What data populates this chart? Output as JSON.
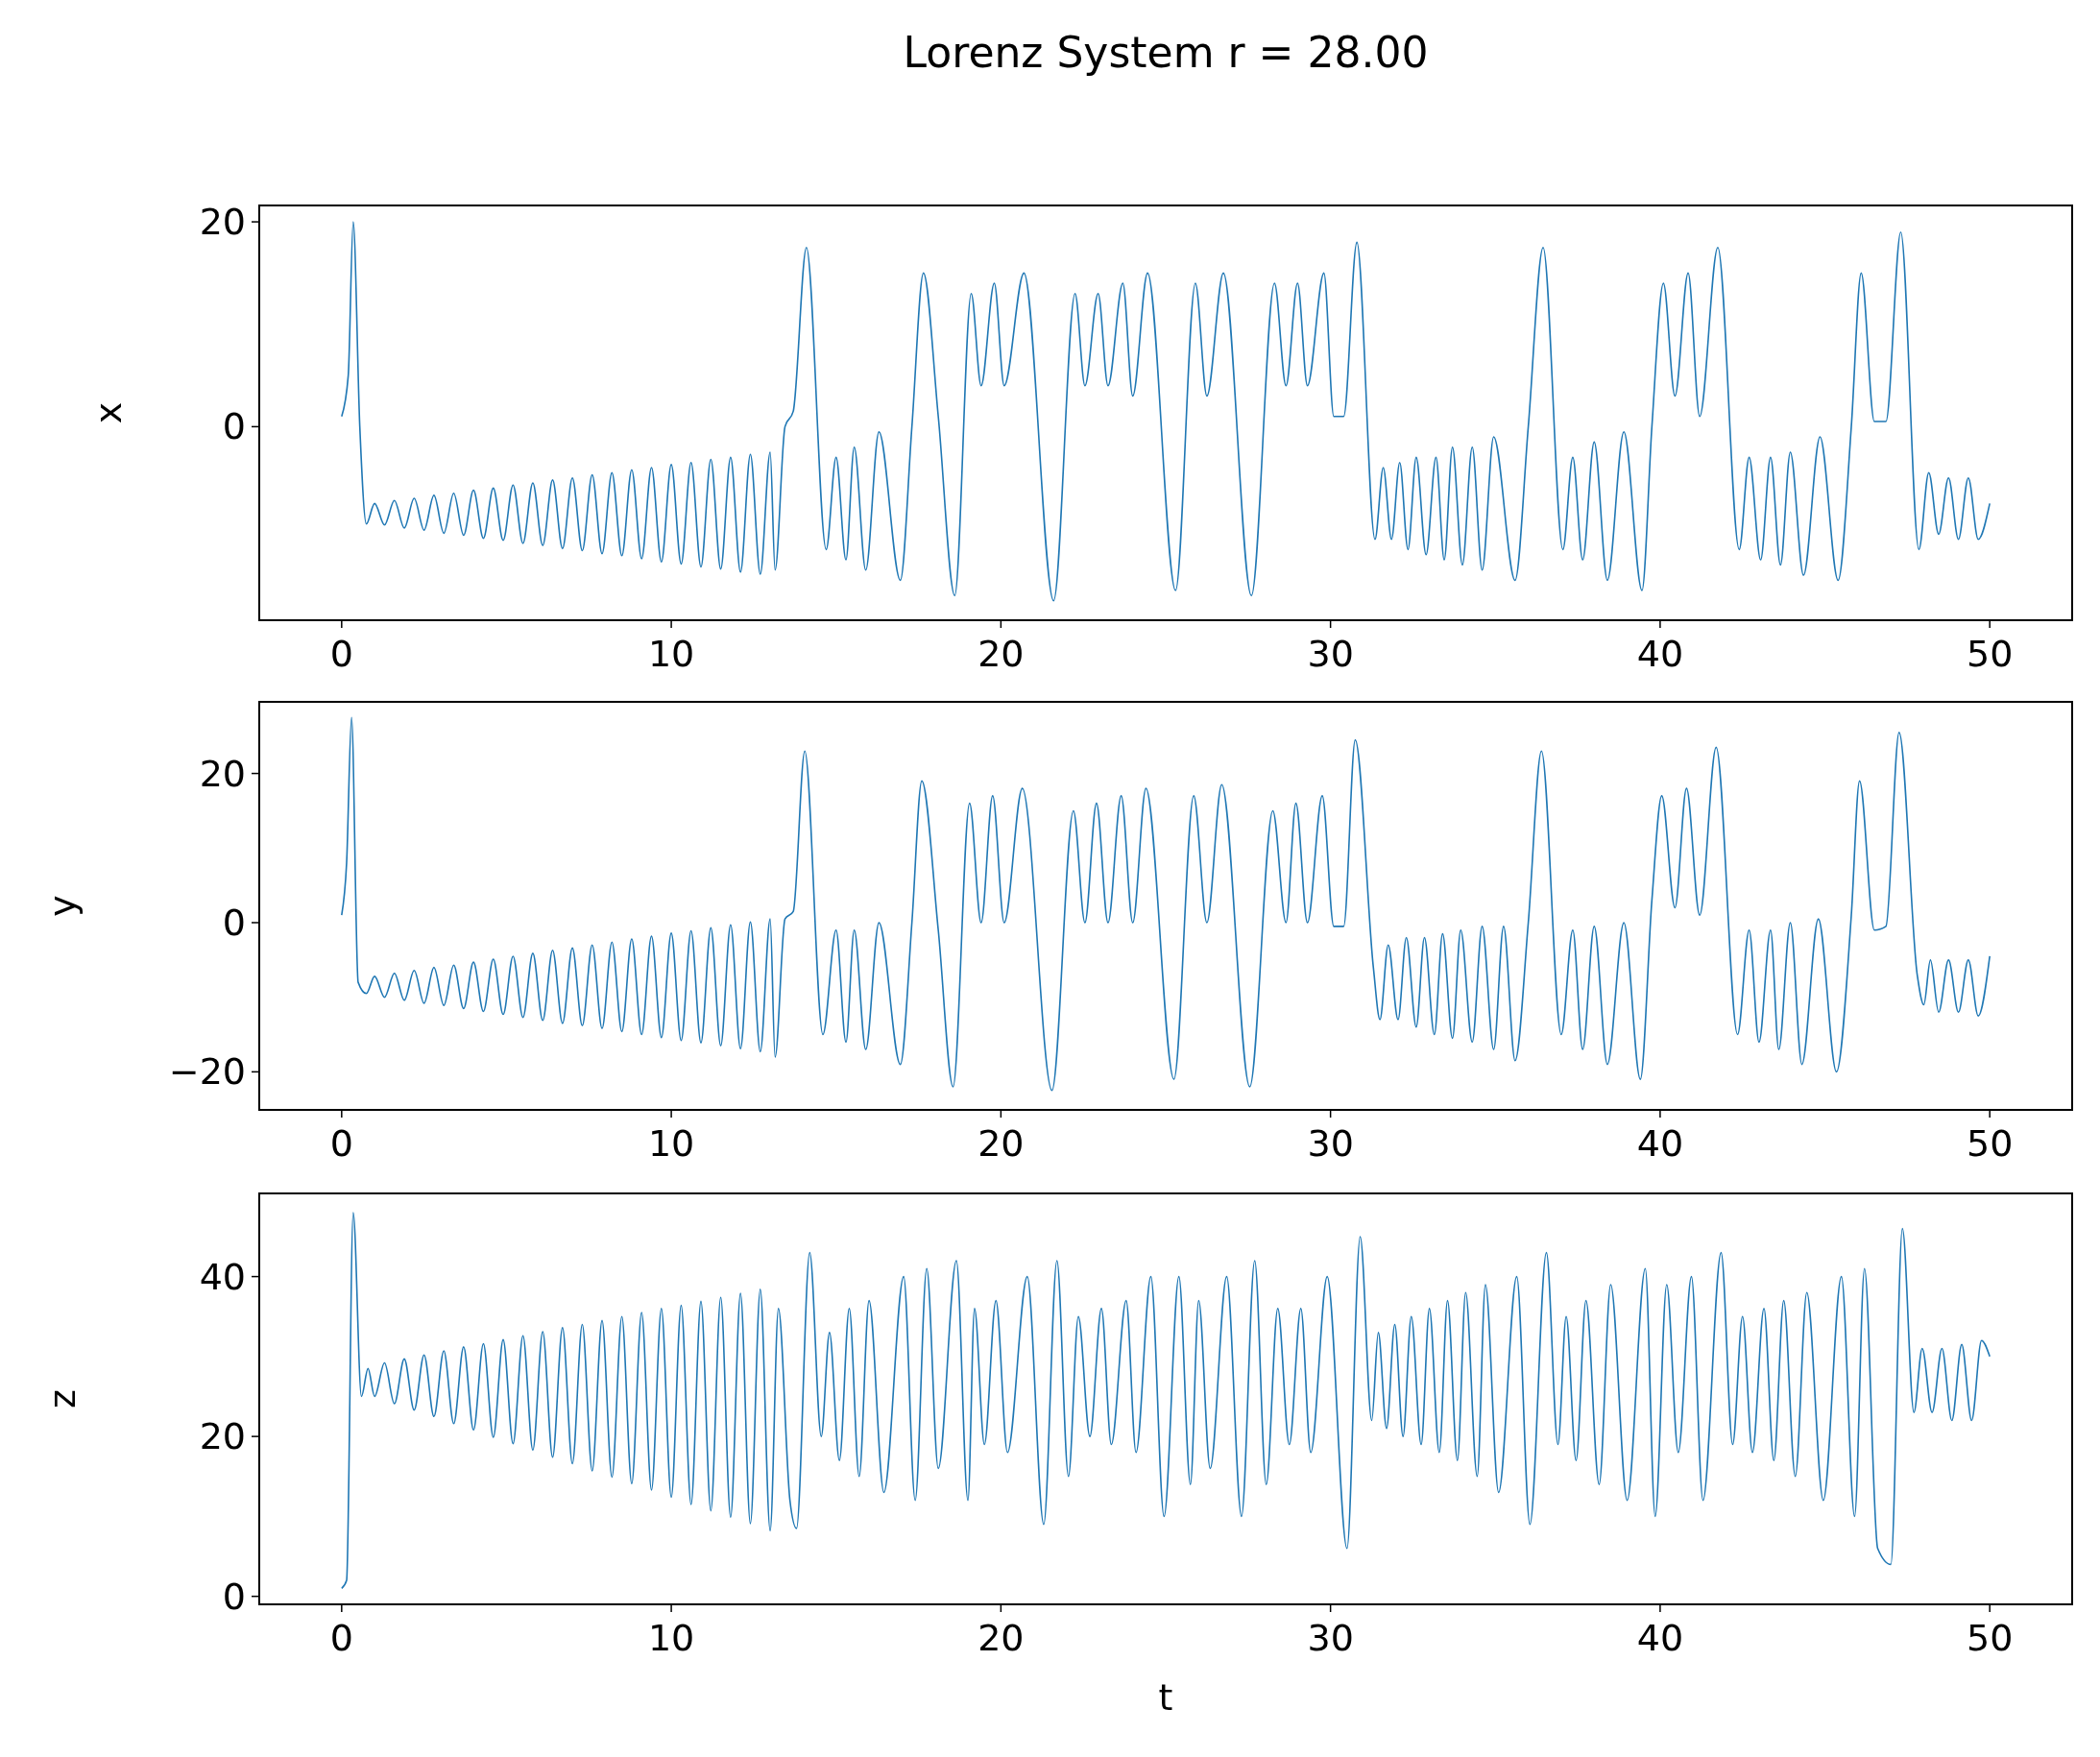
{
  "chart_data": [
    {
      "type": "line",
      "title": "Lorenz System  r = 28.00",
      "ylabel": "x",
      "color": "#1f77b4",
      "xlim": [
        -2.5,
        52.5
      ],
      "ylim": [
        -18.9,
        21.6
      ],
      "xticks": [
        0,
        10,
        20,
        30,
        40,
        50
      ],
      "yticks": [
        0,
        20
      ],
      "x": [
        0,
        0.2,
        0.35,
        0.55,
        0.75,
        1.0,
        1.3,
        1.6,
        1.9,
        2.2,
        2.5,
        2.8,
        3.1,
        3.4,
        3.7,
        4.0,
        4.3,
        4.6,
        4.9,
        5.2,
        5.5,
        5.8,
        6.1,
        6.4,
        6.7,
        7.0,
        7.3,
        7.6,
        7.9,
        8.2,
        8.5,
        8.8,
        9.1,
        9.4,
        9.7,
        10.0,
        10.3,
        10.6,
        10.9,
        11.2,
        11.5,
        11.8,
        12.1,
        12.4,
        12.7,
        13.0,
        13.15,
        13.45,
        13.7,
        14.1,
        14.7,
        15.0,
        15.3,
        15.55,
        15.9,
        16.3,
        16.95,
        17.3,
        17.65,
        18.1,
        18.6,
        19.1,
        19.4,
        19.8,
        20.1,
        20.7,
        21.6,
        22.25,
        22.55,
        22.95,
        23.25,
        23.7,
        24.0,
        24.45,
        25.3,
        25.9,
        26.25,
        26.75,
        27.6,
        28.3,
        28.65,
        29.0,
        29.3,
        29.8,
        30.1,
        30.4,
        30.8,
        31.35,
        31.6,
        31.85,
        32.1,
        32.35,
        32.6,
        32.9,
        33.2,
        33.45,
        33.7,
        34.0,
        34.3,
        34.6,
        34.95,
        35.6,
        36.0,
        36.45,
        37.05,
        37.35,
        37.65,
        38.0,
        38.4,
        38.9,
        39.45,
        39.75,
        40.1,
        40.45,
        40.85,
        41.2,
        41.75,
        42.4,
        42.7,
        43.05,
        43.35,
        43.65,
        43.95,
        44.35,
        44.85,
        45.4,
        45.8,
        46.1,
        46.5,
        46.85,
        47.3,
        47.85,
        48.15,
        48.45,
        48.75,
        49.05,
        49.35,
        49.65,
        50.0
      ],
      "values": [
        1,
        5,
        20,
        0,
        -9.5,
        -7.5,
        -9.6,
        -7.2,
        -9.9,
        -7.0,
        -10.1,
        -6.7,
        -10.4,
        -6.5,
        -10.6,
        -6.2,
        -10.9,
        -6.0,
        -11.1,
        -5.7,
        -11.4,
        -5.5,
        -11.6,
        -5.2,
        -11.9,
        -5.0,
        -12.1,
        -4.7,
        -12.4,
        -4.5,
        -12.6,
        -4.2,
        -12.9,
        -4.0,
        -13.2,
        -3.7,
        -13.4,
        -3.5,
        -13.7,
        -3.2,
        -13.9,
        -3.0,
        -14.2,
        -2.7,
        -14.4,
        -2.5,
        -14,
        0,
        1.5,
        17.5,
        -12,
        -3,
        -13,
        -2,
        -14,
        -0.5,
        -15,
        0,
        15,
        1,
        -16.5,
        13,
        4,
        14,
        4,
        15,
        -17,
        13,
        4,
        13,
        4,
        14,
        3,
        15,
        -16,
        14,
        3,
        15,
        -16.5,
        14,
        4,
        14,
        4,
        15,
        1,
        1,
        18,
        -11,
        -4,
        -11,
        -3.5,
        -12,
        -3,
        -12.5,
        -3,
        -13,
        -2,
        -13.5,
        -2,
        -14,
        -1,
        -15,
        0,
        17.5,
        -12,
        -3,
        -13,
        -1.5,
        -15,
        -0.5,
        -16,
        0,
        14,
        3,
        15,
        1,
        17.5,
        -12,
        -3,
        -13,
        -3,
        -13.5,
        -2.5,
        -14.5,
        -1,
        -15,
        0,
        15,
        0.5,
        0.5,
        19,
        -12,
        -4.5,
        -10.5,
        -5,
        -11,
        -5,
        -11,
        -7.5
      ]
    },
    {
      "type": "line",
      "ylabel": "y",
      "color": "#1f77b4",
      "xlim": [
        -2.5,
        52.5
      ],
      "ylim": [
        -25.1,
        29.6
      ],
      "xticks": [
        0,
        10,
        20,
        30,
        40,
        50
      ],
      "yticks": [
        -20,
        0,
        20
      ],
      "x": [
        0,
        0.15,
        0.3,
        0.5,
        0.75,
        1.0,
        1.3,
        1.6,
        1.9,
        2.2,
        2.5,
        2.8,
        3.1,
        3.4,
        3.7,
        4.0,
        4.3,
        4.6,
        4.9,
        5.2,
        5.5,
        5.8,
        6.1,
        6.4,
        6.7,
        7.0,
        7.3,
        7.6,
        7.9,
        8.2,
        8.5,
        8.8,
        9.1,
        9.4,
        9.7,
        10.0,
        10.3,
        10.6,
        10.9,
        11.2,
        11.5,
        11.8,
        12.1,
        12.4,
        12.7,
        13.0,
        13.15,
        13.45,
        13.7,
        14.05,
        14.6,
        15.0,
        15.3,
        15.55,
        15.9,
        16.3,
        16.95,
        17.3,
        17.6,
        18.1,
        18.55,
        19.05,
        19.4,
        19.75,
        20.1,
        20.65,
        21.55,
        22.2,
        22.55,
        22.9,
        23.25,
        23.65,
        24.0,
        24.4,
        25.25,
        25.85,
        26.25,
        26.7,
        27.55,
        28.25,
        28.65,
        28.95,
        29.3,
        29.75,
        30.1,
        30.4,
        30.75,
        31.3,
        31.5,
        31.75,
        32.05,
        32.3,
        32.6,
        32.85,
        33.15,
        33.4,
        33.7,
        33.95,
        34.3,
        34.6,
        34.95,
        35.25,
        35.6,
        36.0,
        36.4,
        37.0,
        37.35,
        37.65,
        38.0,
        38.4,
        38.9,
        39.4,
        39.75,
        40.05,
        40.45,
        40.8,
        41.2,
        41.7,
        42.35,
        42.7,
        43.0,
        43.35,
        43.6,
        43.95,
        44.3,
        44.8,
        45.35,
        45.8,
        46.05,
        46.5,
        46.85,
        47.25,
        47.8,
        48.0,
        48.2,
        48.45,
        48.75,
        49.05,
        49.35,
        49.65,
        50.0
      ],
      "values": [
        1,
        8,
        27.5,
        -8,
        -9.5,
        -7.2,
        -10.0,
        -6.8,
        -10.4,
        -6.4,
        -10.8,
        -6.0,
        -11.1,
        -5.7,
        -11.5,
        -5.3,
        -11.9,
        -4.9,
        -12.3,
        -4.5,
        -12.7,
        -4.1,
        -13.1,
        -3.7,
        -13.5,
        -3.4,
        -13.8,
        -3.0,
        -14.2,
        -2.6,
        -14.6,
        -2.2,
        -15.0,
        -1.8,
        -15.4,
        -1.4,
        -15.8,
        -1.1,
        -16.1,
        -0.7,
        -16.5,
        -0.3,
        -16.9,
        0.1,
        -17.3,
        0.5,
        -18,
        0.5,
        1.5,
        23,
        -15,
        -1,
        -16,
        -1,
        -17,
        0,
        -19,
        0,
        19,
        -1,
        -22,
        16,
        0,
        17,
        0,
        18,
        -22.5,
        15,
        0,
        16,
        0,
        17,
        0,
        18,
        -21,
        17,
        0,
        18.5,
        -22,
        15,
        0,
        16,
        0,
        17,
        -0.5,
        -0.5,
        24.5,
        -6,
        -13,
        -3,
        -13,
        -2,
        -14,
        -2,
        -15,
        -1.5,
        -15.5,
        -1,
        -16,
        -0.5,
        -17,
        -0.5,
        -18.5,
        0,
        23,
        -15,
        -1,
        -17,
        -0.5,
        -19,
        0,
        -21,
        3,
        17,
        2,
        18,
        1,
        23.5,
        -15,
        -1,
        -16,
        -1,
        -17,
        0,
        -19,
        0.5,
        -20,
        1,
        19,
        -1,
        -0.5,
        25.5,
        -7,
        -11,
        -5,
        -12,
        -5,
        -12,
        -5,
        -12.5,
        -4.5
      ]
    },
    {
      "type": "line",
      "ylabel": "z",
      "xlabel": "t",
      "color": "#1f77b4",
      "xlim": [
        -2.5,
        52.5
      ],
      "ylim": [
        -1,
        50.4
      ],
      "xticks": [
        0,
        10,
        20,
        30,
        40,
        50
      ],
      "yticks": [
        0,
        20,
        40
      ],
      "x": [
        0,
        0.15,
        0.35,
        0.6,
        0.8,
        1.0,
        1.3,
        1.6,
        1.9,
        2.2,
        2.5,
        2.8,
        3.1,
        3.4,
        3.7,
        4.0,
        4.3,
        4.6,
        4.9,
        5.2,
        5.5,
        5.8,
        6.1,
        6.4,
        6.7,
        7.0,
        7.3,
        7.6,
        7.9,
        8.2,
        8.5,
        8.8,
        9.1,
        9.4,
        9.7,
        10.0,
        10.3,
        10.6,
        10.9,
        11.2,
        11.5,
        11.8,
        12.1,
        12.4,
        12.7,
        13.0,
        13.25,
        13.6,
        13.8,
        14.2,
        14.55,
        14.8,
        15.1,
        15.4,
        15.7,
        16.0,
        16.45,
        17.05,
        17.4,
        17.75,
        18.1,
        18.65,
        19.0,
        19.2,
        19.5,
        19.85,
        20.2,
        20.8,
        21.3,
        21.7,
        22.05,
        22.35,
        22.7,
        23.05,
        23.35,
        23.8,
        24.1,
        24.55,
        24.95,
        25.4,
        25.75,
        26.0,
        26.35,
        26.85,
        27.3,
        27.7,
        28.05,
        28.4,
        28.75,
        29.1,
        29.4,
        29.9,
        30.5,
        30.9,
        31.25,
        31.45,
        31.7,
        31.95,
        32.2,
        32.45,
        32.75,
        33.0,
        33.3,
        33.55,
        33.85,
        34.1,
        34.45,
        34.7,
        35.1,
        35.65,
        36.05,
        36.55,
        36.9,
        37.15,
        37.45,
        37.75,
        38.15,
        38.5,
        39.0,
        39.55,
        39.85,
        40.2,
        40.55,
        40.95,
        41.3,
        41.85,
        42.2,
        42.5,
        42.8,
        43.15,
        43.45,
        43.75,
        44.1,
        44.45,
        44.95,
        45.5,
        45.9,
        46.2,
        46.6,
        47.0,
        47.35,
        47.7,
        47.95,
        48.25,
        48.55,
        48.85,
        49.15,
        49.45,
        49.75,
        50.0
      ],
      "values": [
        1,
        2,
        48,
        25,
        28.5,
        25.0,
        29.2,
        24.1,
        29.7,
        23.3,
        30.2,
        22.5,
        30.7,
        21.6,
        31.2,
        20.8,
        31.6,
        19.9,
        32.1,
        19.1,
        32.6,
        18.3,
        33.1,
        17.4,
        33.6,
        16.6,
        34.0,
        15.7,
        34.5,
        14.9,
        35.0,
        14.1,
        35.5,
        13.3,
        36.0,
        12.4,
        36.4,
        11.5,
        36.9,
        10.7,
        37.4,
        9.9,
        37.9,
        9.1,
        38.4,
        8.2,
        36,
        12,
        8.5,
        43,
        20,
        33,
        17,
        36,
        15,
        37,
        13,
        40,
        12,
        41,
        16,
        42,
        12,
        36,
        19,
        37,
        18,
        40,
        9,
        42,
        15,
        35,
        20,
        36,
        19,
        37,
        18,
        40,
        10,
        40,
        14,
        37,
        16,
        40,
        10,
        42,
        14,
        36,
        19,
        36,
        18,
        40,
        6,
        45,
        22,
        33,
        21,
        34,
        20,
        35,
        19,
        36,
        18,
        37,
        17,
        38,
        15,
        39,
        13,
        40,
        9,
        43,
        19,
        35,
        17,
        37,
        14,
        39,
        12,
        41,
        10,
        39,
        18,
        40,
        12,
        43,
        19,
        35,
        18,
        36,
        17,
        37,
        15,
        38,
        12,
        40,
        10,
        41,
        6,
        4,
        46,
        23,
        31,
        23,
        31,
        22,
        31.5,
        22,
        32,
        30
      ]
    }
  ]
}
